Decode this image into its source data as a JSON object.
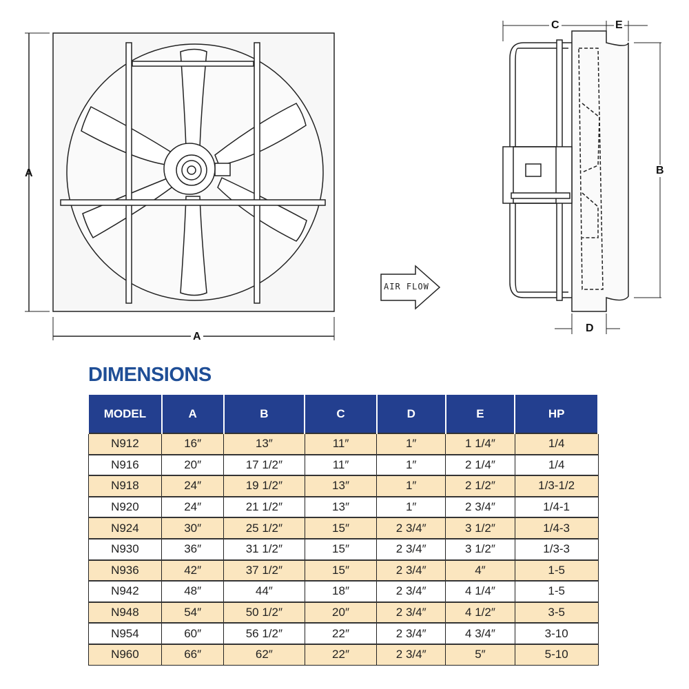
{
  "diagram": {
    "front_labels": {
      "height": "A",
      "width": "A"
    },
    "side_labels": {
      "c": "C",
      "e": "E",
      "b": "B",
      "d": "D"
    },
    "airflow_label": "AIR FLOW"
  },
  "title": "DIMENSIONS",
  "colors": {
    "header": "#233f8f",
    "title": "#1f4e96",
    "row_highlight": "#fbe6bf"
  },
  "table": {
    "headers": [
      "MODEL",
      "A",
      "B",
      "C",
      "D",
      "E",
      "HP"
    ],
    "rows": [
      [
        "N912",
        "16″",
        "13″",
        "11″",
        "1″",
        "1 1/4″",
        "1/4"
      ],
      [
        "N916",
        "20″",
        "17 1/2″",
        "11″",
        "1″",
        "2 1/4″",
        "1/4"
      ],
      [
        "N918",
        "24″",
        "19 1/2″",
        "13″",
        "1″",
        "2 1/2″",
        "1/3-1/2"
      ],
      [
        "N920",
        "24″",
        "21 1/2″",
        "13″",
        "1″",
        "2 3/4″",
        "1/4-1"
      ],
      [
        "N924",
        "30″",
        "25 1/2″",
        "15″",
        "2 3/4″",
        "3 1/2″",
        "1/4-3"
      ],
      [
        "N930",
        "36″",
        "31 1/2″",
        "15″",
        "2 3/4″",
        "3 1/2″",
        "1/3-3"
      ],
      [
        "N936",
        "42″",
        "37 1/2″",
        "15″",
        "2 3/4″",
        "4″",
        "1-5"
      ],
      [
        "N942",
        "48″",
        "44″",
        "18″",
        "2 3/4″",
        "4 1/4″",
        "1-5"
      ],
      [
        "N948",
        "54″",
        "50 1/2″",
        "20″",
        "2 3/4″",
        "4 1/2″",
        "3-5"
      ],
      [
        "N954",
        "60″",
        "56 1/2″",
        "22″",
        "2 3/4″",
        "4 3/4″",
        "3-10"
      ],
      [
        "N960",
        "66″",
        "62″",
        "22″",
        "2 3/4″",
        "5″",
        "5-10"
      ]
    ]
  }
}
